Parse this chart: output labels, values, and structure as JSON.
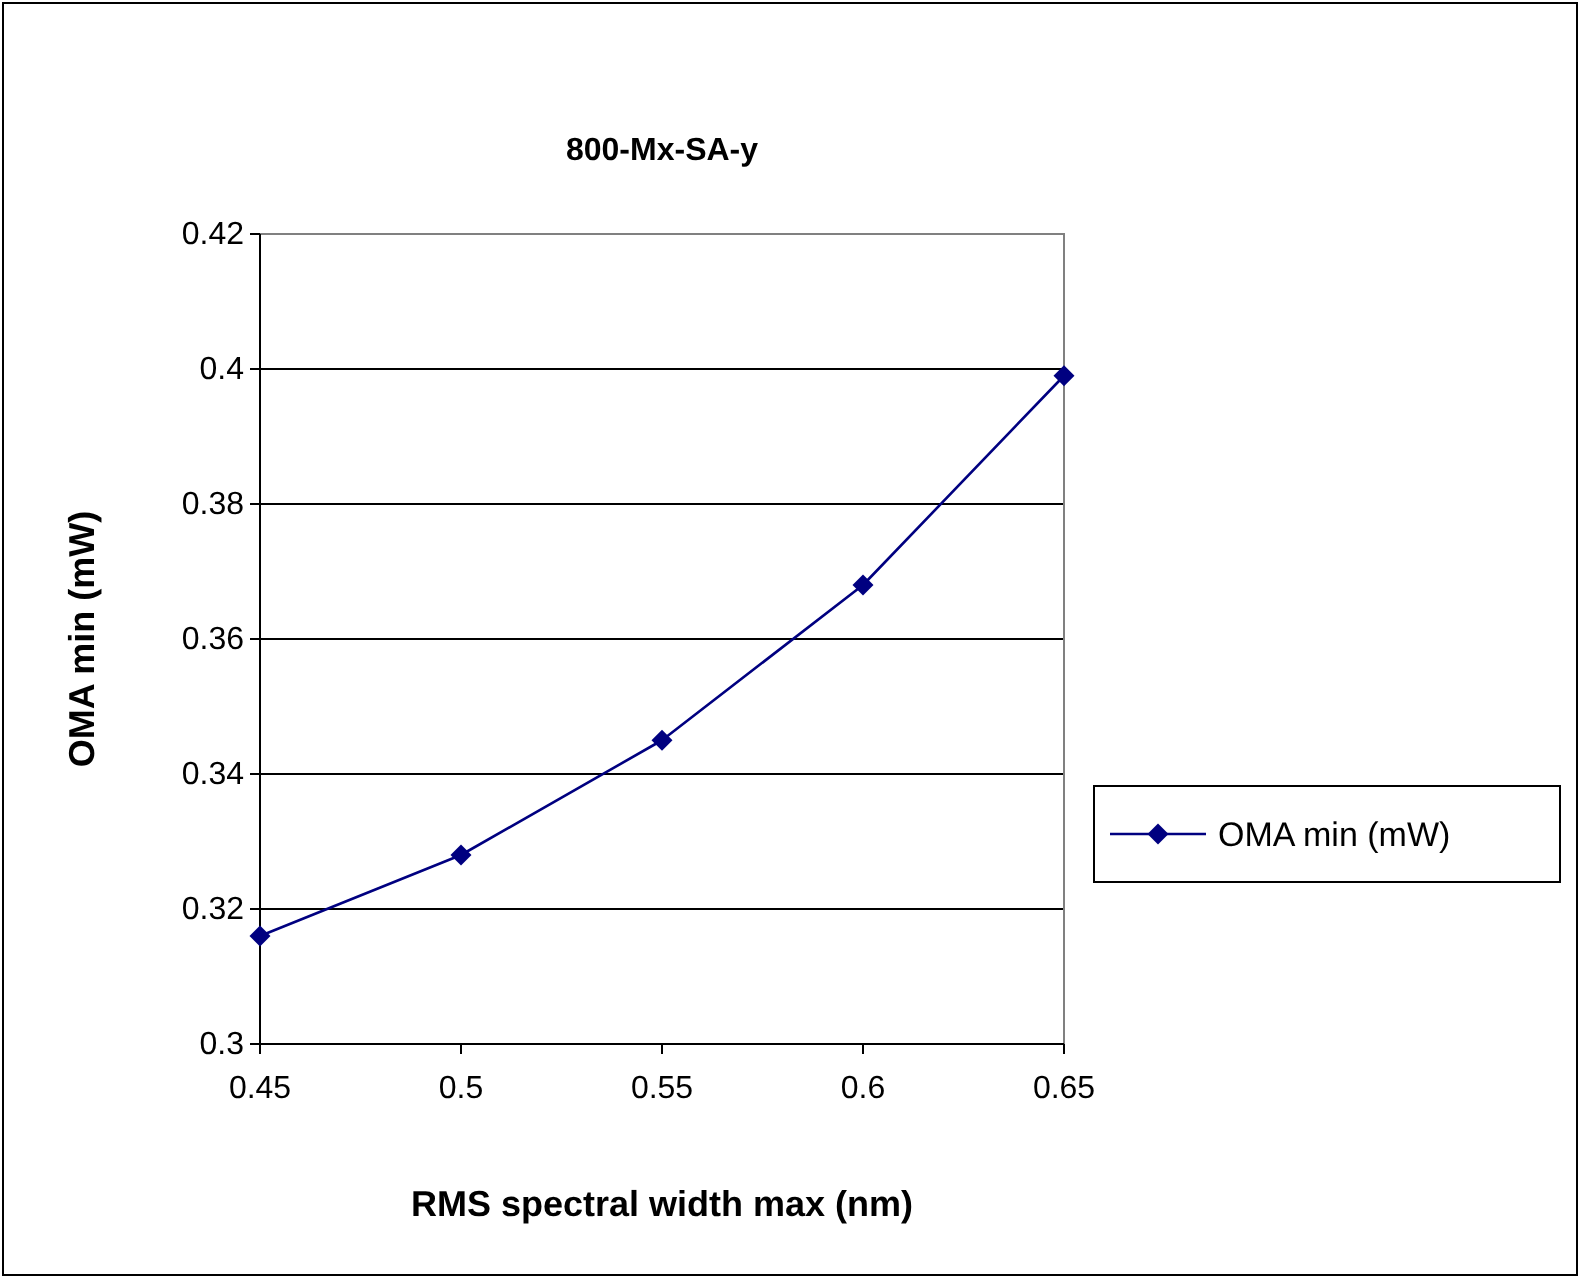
{
  "chart_data": {
    "type": "line",
    "title": "800-Mx-SA-y",
    "xlabel": "RMS spectral width max (nm)",
    "ylabel": "OMA min (mW)",
    "x": [
      0.45,
      0.5,
      0.55,
      0.6,
      0.65
    ],
    "series": [
      {
        "name": "OMA min (mW)",
        "color": "#000080",
        "values": [
          0.316,
          0.328,
          0.345,
          0.368,
          0.399
        ]
      }
    ],
    "xlim": [
      0.45,
      0.65
    ],
    "xticks": [
      0.45,
      0.5,
      0.55,
      0.6,
      0.65
    ],
    "ylim": [
      0.3,
      0.42
    ],
    "yticks": [
      0.3,
      0.32,
      0.34,
      0.36,
      0.38,
      0.4,
      0.42
    ],
    "grid": "y",
    "legend": "right",
    "marker": "diamond",
    "line_style": "solid"
  }
}
